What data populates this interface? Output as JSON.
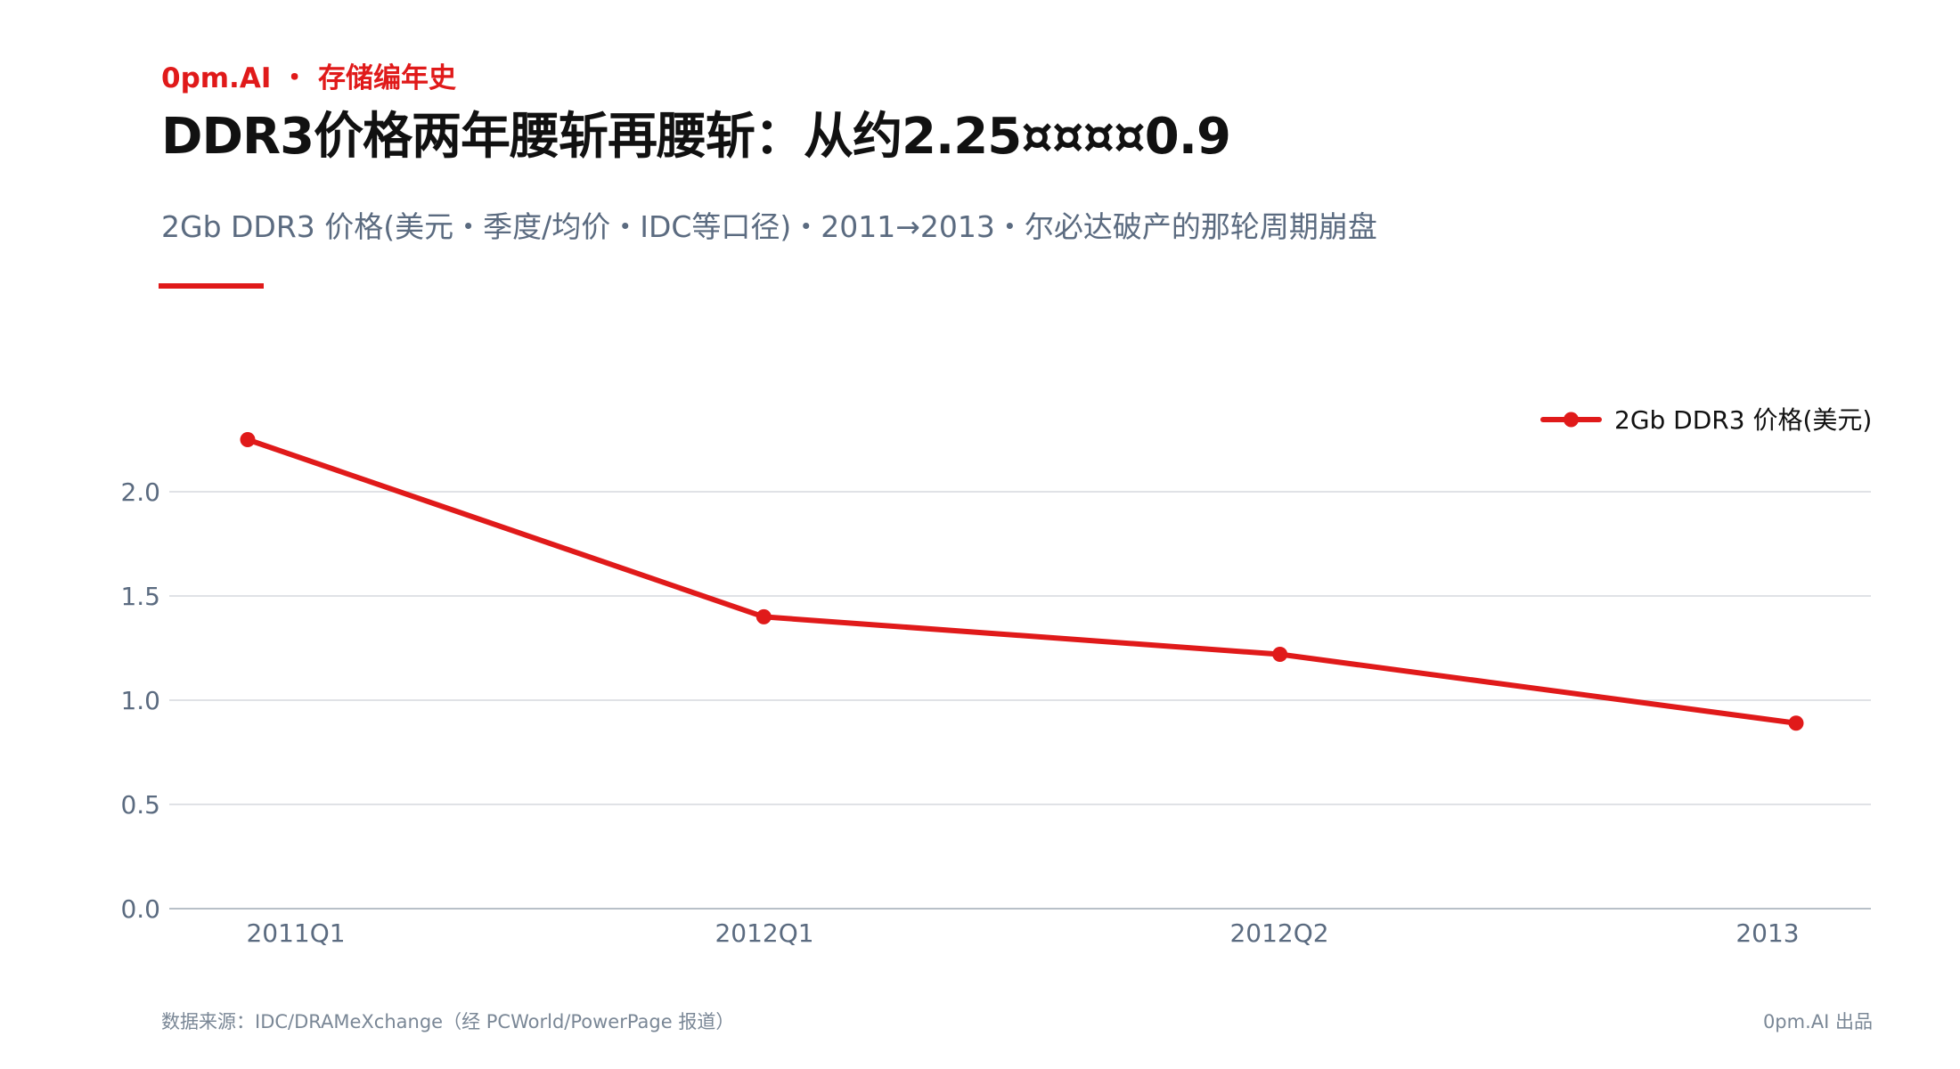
{
  "header": {
    "brand": "0pm.AI ・ 存储编年史",
    "title": "DDR3价格两年腰斩再腰斩：从约2.25¤¤¤¤0.9",
    "subtitle": "2Gb DDR3 价格(美元・季度/均价・IDC等口径)・2011→2013・尔必达破产的那轮周期崩盘"
  },
  "colors": {
    "accent": "#e01a1a",
    "grid": "#d5d9de",
    "axis_text": "#5b6b80"
  },
  "chart_data": {
    "type": "line",
    "categories": [
      "2011Q1",
      "2012Q1",
      "2012Q2",
      "2013"
    ],
    "series": [
      {
        "name": "2Gb DDR3 价格(美元)",
        "values": [
          2.25,
          1.4,
          1.22,
          0.89
        ],
        "color": "#e01a1a"
      }
    ],
    "ylim": [
      0,
      2.5
    ],
    "yticks": [
      0.0,
      0.5,
      1.0,
      1.5,
      2.0
    ],
    "ytick_labels": [
      "0.0",
      "0.5",
      "1.0",
      "1.5",
      "2.0"
    ],
    "grid": true,
    "legend_position": "top-right",
    "markers": true
  },
  "footer": {
    "source": "数据来源：IDC/DRAMeXchange（经 PCWorld/PowerPage 报道）",
    "credit": "0pm.AI 出品"
  }
}
